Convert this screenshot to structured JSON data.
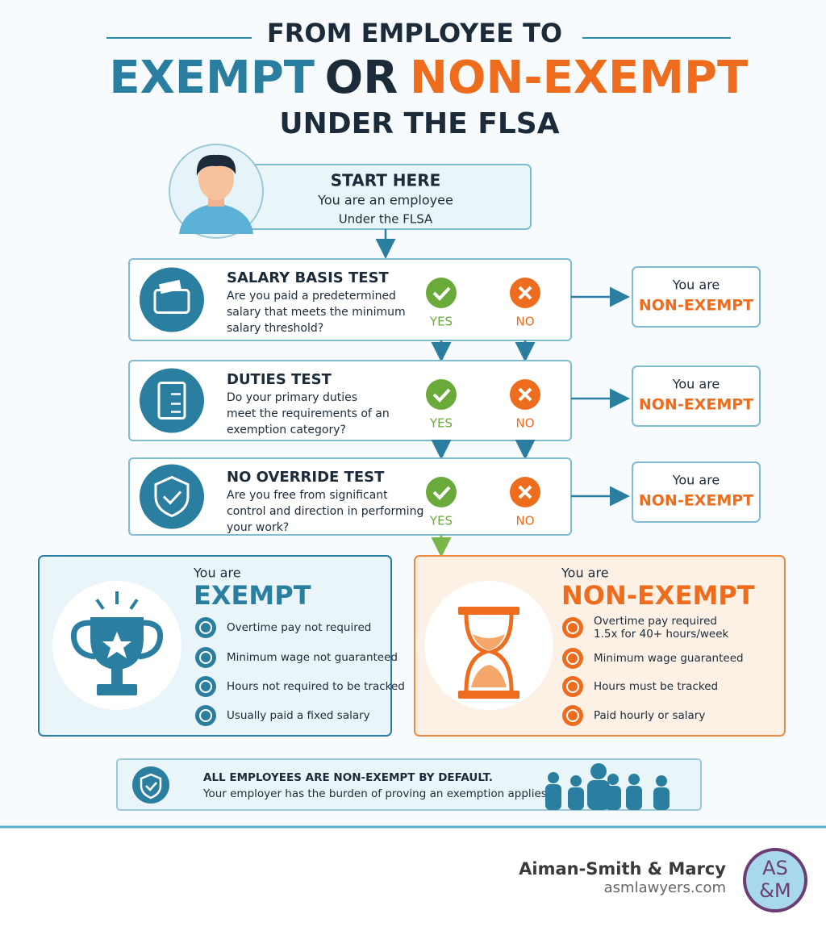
{
  "header": {
    "line1": "FROM EMPLOYEE TO",
    "exempt": "EXEMPT",
    "or": "OR",
    "non_exempt": "NON-EXEMPT",
    "line3": "UNDER THE FLSA"
  },
  "start": {
    "title": "START HERE",
    "line1": "You are an employee",
    "line2": "Under the FLSA"
  },
  "tests": [
    {
      "title": "SALARY BASIS TEST",
      "question": [
        "Are you paid a predetermined",
        "salary that meets the minimum",
        "salary threshold?"
      ],
      "yes": "YES",
      "no": "NO",
      "result_prefix": "You are",
      "result": "NON-EXEMPT"
    },
    {
      "title": "DUTIES TEST",
      "question": [
        "Do your primary duties",
        "meet the requirements of an",
        "exemption category?"
      ],
      "yes": "YES",
      "no": "NO",
      "result_prefix": "You are",
      "result": "NON-EXEMPT"
    },
    {
      "title": "NO OVERRIDE TEST",
      "question": [
        "Are you free from significant",
        "control and direction in performing",
        "your work?"
      ],
      "yes": "YES",
      "no": "NO",
      "result_prefix": "You are",
      "result": "NON-EXEMPT"
    }
  ],
  "exempt": {
    "prefix": "You are",
    "title": "EXEMPT",
    "items": [
      "Overtime pay not required",
      "Minimum wage not guaranteed",
      "Hours not required to be tracked",
      "Usually paid a fixed salary"
    ]
  },
  "non_exempt": {
    "prefix": "You are",
    "title": "NON-EXEMPT",
    "items": [
      [
        "Overtime pay required",
        "1.5x for 40+ hours/week"
      ],
      [
        "Minimum wage guaranteed"
      ],
      [
        "Hours must be tracked"
      ],
      [
        "Paid hourly or salary"
      ]
    ]
  },
  "notice": {
    "title": "ALL EMPLOYEES ARE NON-EXEMPT BY DEFAULT.",
    "text": "Your employer has the burden of proving an exemption applies."
  },
  "footer": {
    "firm": "Aiman-Smith & Marcy",
    "url": "asmlawyers.com",
    "logo_top": "AS",
    "logo_bottom": "&M"
  }
}
